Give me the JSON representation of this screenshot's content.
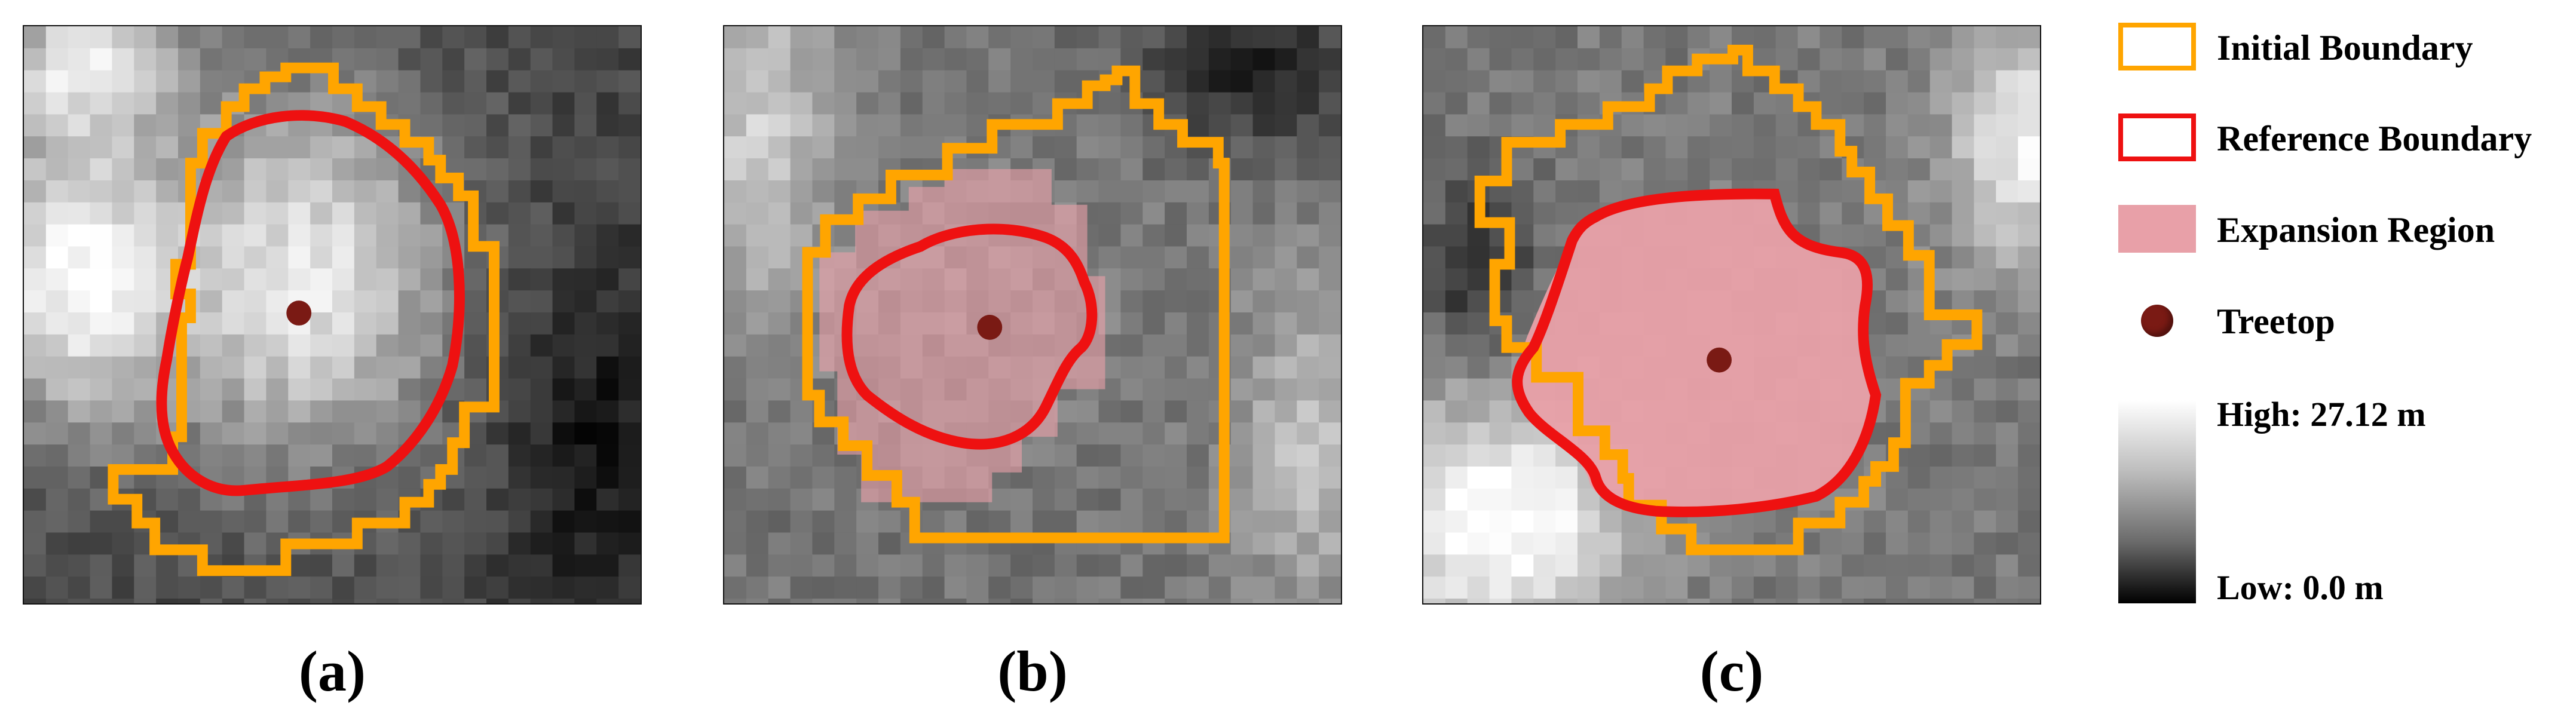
{
  "panels": [
    {
      "id": "a",
      "caption": "(a)"
    },
    {
      "id": "b",
      "caption": "(b)"
    },
    {
      "id": "c",
      "caption": "(c)"
    }
  ],
  "legend": {
    "initial_boundary": "Initial Boundary",
    "reference_boundary": "Reference Boundary",
    "expansion_region": "Expansion Region",
    "treetop": "Treetop",
    "scale_high": "High: 27.12 m",
    "scale_low": "Low: 0.0 m"
  },
  "colors": {
    "initial_boundary": "#ffa500",
    "reference_boundary": "#ee1111",
    "expansion_region": "#e8a0a8",
    "treetop": "#7a1a14"
  },
  "icons": [
    "treetop-dot-icon"
  ]
}
